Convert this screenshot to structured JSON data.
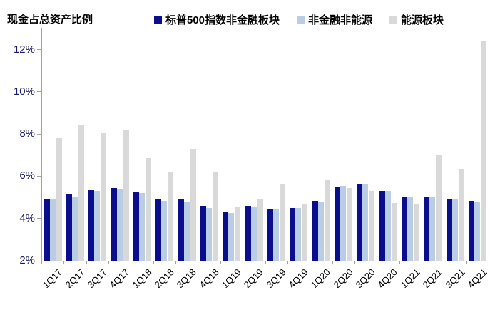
{
  "title": "现金占总资产比例",
  "legend": [
    {
      "name": "sp500-nonfinancial",
      "label": "标普500指数非金融板块",
      "color": "#0a0e8c"
    },
    {
      "name": "nonfinancial-nonenergy",
      "label": "非金融非能源",
      "color": "#b9cde4"
    },
    {
      "name": "energy",
      "label": "能源板块",
      "color": "#d9d9d9"
    }
  ],
  "chart_data": {
    "type": "bar",
    "title": "现金占总资产比例",
    "xlabel": "",
    "ylabel": "",
    "categories": [
      "1Q17",
      "2Q17",
      "3Q17",
      "4Q17",
      "1Q18",
      "2Q18",
      "3Q18",
      "4Q18",
      "1Q19",
      "2Q19",
      "3Q19",
      "4Q19",
      "1Q20",
      "2Q20",
      "3Q20",
      "4Q20",
      "1Q21",
      "2Q21",
      "3Q21",
      "4Q21"
    ],
    "series": [
      {
        "name": "标普500指数非金融板块",
        "color": "#0a0e8c",
        "values": [
          4.95,
          5.15,
          5.35,
          5.45,
          5.25,
          4.9,
          4.9,
          4.6,
          4.3,
          4.6,
          4.45,
          4.5,
          4.85,
          5.5,
          5.6,
          5.3,
          5.0,
          5.05,
          4.9,
          4.85
        ]
      },
      {
        "name": "非金融非能源",
        "color": "#b9cde4",
        "values": [
          4.9,
          5.05,
          5.3,
          5.4,
          5.2,
          4.85,
          4.8,
          4.5,
          4.25,
          4.55,
          4.45,
          4.5,
          4.8,
          5.55,
          5.6,
          5.3,
          5.0,
          5.0,
          4.9,
          4.8
        ]
      },
      {
        "name": "能源板块",
        "color": "#d9d9d9",
        "values": [
          7.8,
          8.4,
          8.05,
          8.2,
          6.85,
          6.2,
          7.3,
          6.2,
          4.55,
          4.95,
          5.65,
          4.65,
          5.8,
          5.45,
          5.3,
          4.75,
          4.7,
          7.0,
          6.35,
          12.4
        ]
      }
    ],
    "ylim": [
      2,
      13
    ],
    "y_ticks": [
      "2%",
      "4%",
      "6%",
      "8%",
      "10%",
      "12%"
    ],
    "y_tick_values": [
      2,
      4,
      6,
      8,
      10,
      12
    ],
    "grid": false,
    "legend_position": "top",
    "bar_baseline": "2%"
  },
  "colors": {
    "axis_line": "#a3a3a3",
    "y_tick_label": "#191970",
    "x_tick_label": "#000000",
    "title_text": "#000000",
    "background": "#ffffff"
  }
}
